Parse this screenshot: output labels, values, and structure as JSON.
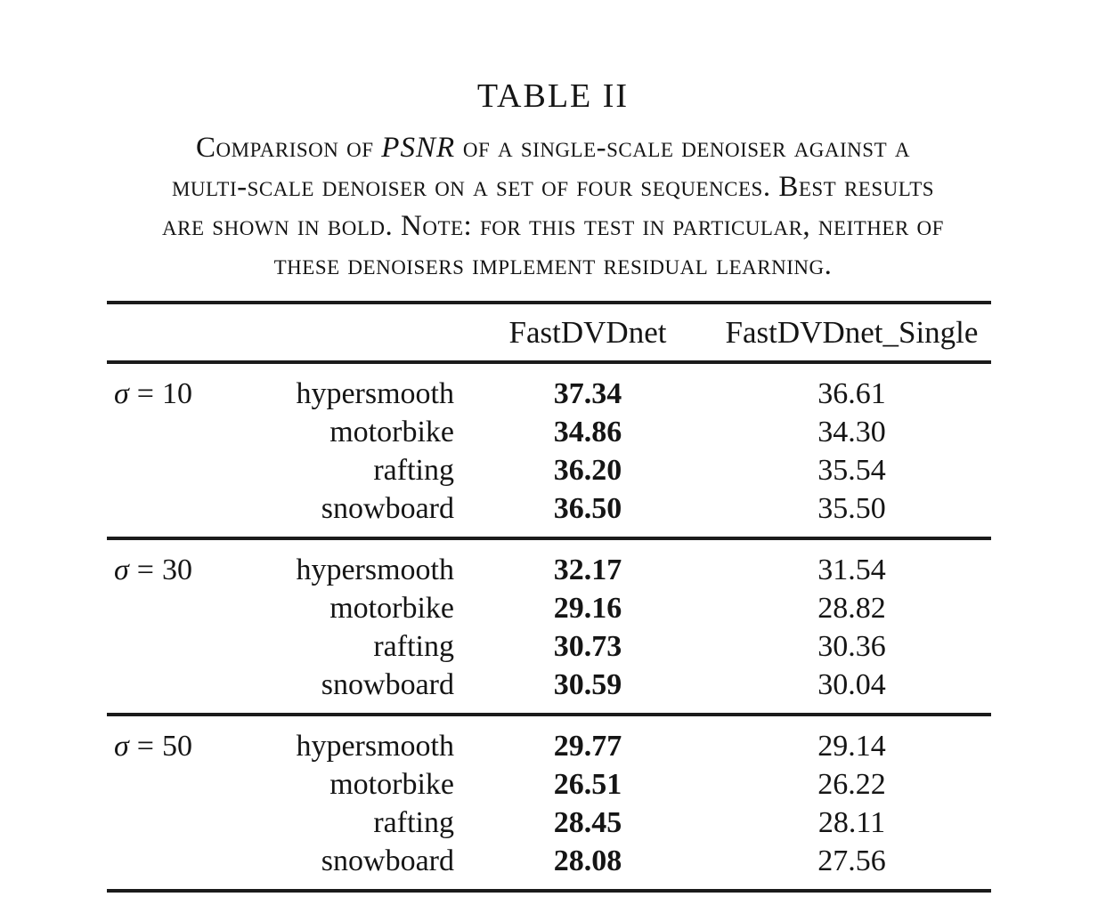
{
  "page": {
    "background_color": "#ffffff",
    "text_color": "#151515",
    "rule_color": "#1b1b1b"
  },
  "title": "TABLE II",
  "caption": {
    "line1_pre": "Comparison of ",
    "line1_math": "PSNR",
    "line1_post": " of a single-scale denoiser against a",
    "line2": "multi-scale denoiser on a set of four sequences. Best results",
    "line3": "are shown in bold. Note: for this test in particular, neither of",
    "line4": "these denoisers implement residual learning."
  },
  "table": {
    "header": {
      "col3": "FastDVDnet",
      "col4": "FastDVDnet_Single"
    },
    "groups": [
      {
        "sigma": "σ",
        "eq": "=",
        "value": "10",
        "rows": [
          {
            "sequence": "hypersmooth",
            "fastdvdnet": "37.34",
            "single": "36.61"
          },
          {
            "sequence": "motorbike",
            "fastdvdnet": "34.86",
            "single": "34.30"
          },
          {
            "sequence": "rafting",
            "fastdvdnet": "36.20",
            "single": "35.54"
          },
          {
            "sequence": "snowboard",
            "fastdvdnet": "36.50",
            "single": "35.50"
          }
        ]
      },
      {
        "sigma": "σ",
        "eq": "=",
        "value": "30",
        "rows": [
          {
            "sequence": "hypersmooth",
            "fastdvdnet": "32.17",
            "single": "31.54"
          },
          {
            "sequence": "motorbike",
            "fastdvdnet": "29.16",
            "single": "28.82"
          },
          {
            "sequence": "rafting",
            "fastdvdnet": "30.73",
            "single": "30.36"
          },
          {
            "sequence": "snowboard",
            "fastdvdnet": "30.59",
            "single": "30.04"
          }
        ]
      },
      {
        "sigma": "σ",
        "eq": "=",
        "value": "50",
        "rows": [
          {
            "sequence": "hypersmooth",
            "fastdvdnet": "29.77",
            "single": "29.14"
          },
          {
            "sequence": "motorbike",
            "fastdvdnet": "26.51",
            "single": "26.22"
          },
          {
            "sequence": "rafting",
            "fastdvdnet": "28.45",
            "single": "28.11"
          },
          {
            "sequence": "snowboard",
            "fastdvdnet": "28.08",
            "single": "27.56"
          }
        ]
      }
    ]
  },
  "chart_data": {
    "type": "table",
    "title": "TABLE II — Comparison of PSNR of a single-scale denoiser against a multi-scale denoiser on a set of four sequences. Best results are shown in bold. Note: for this test in particular, neither of these denoisers implement residual learning.",
    "columns": [
      "sigma",
      "sequence",
      "FastDVDnet",
      "FastDVDnet_Single"
    ],
    "rows": [
      [
        10,
        "hypersmooth",
        37.34,
        36.61
      ],
      [
        10,
        "motorbike",
        34.86,
        34.3
      ],
      [
        10,
        "rafting",
        36.2,
        35.54
      ],
      [
        10,
        "snowboard",
        36.5,
        35.5
      ],
      [
        30,
        "hypersmooth",
        32.17,
        31.54
      ],
      [
        30,
        "motorbike",
        29.16,
        28.82
      ],
      [
        30,
        "rafting",
        30.73,
        30.36
      ],
      [
        30,
        "snowboard",
        30.59,
        30.04
      ],
      [
        50,
        "hypersmooth",
        29.77,
        29.14
      ],
      [
        50,
        "motorbike",
        26.51,
        26.22
      ],
      [
        50,
        "rafting",
        28.45,
        28.11
      ],
      [
        50,
        "snowboard",
        28.08,
        27.56
      ]
    ],
    "bold_column": "FastDVDnet"
  }
}
